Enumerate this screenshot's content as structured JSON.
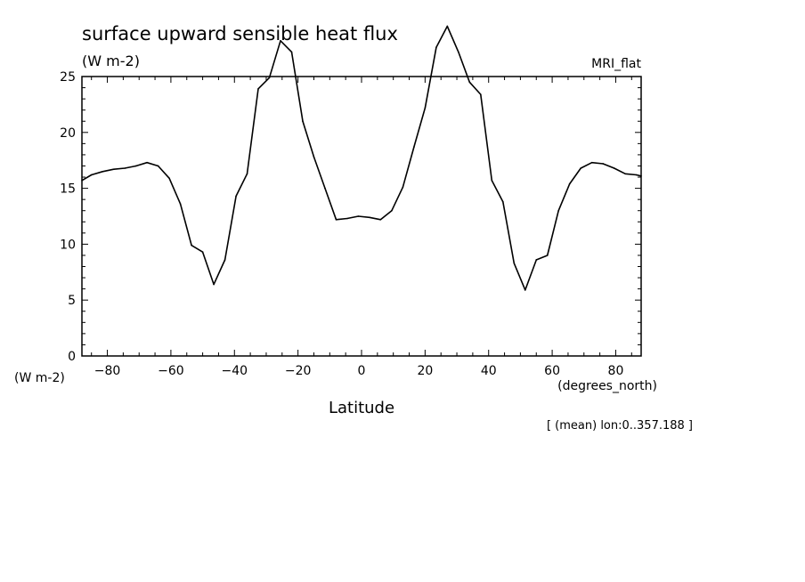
{
  "chart_data": {
    "type": "line",
    "title": "surface upward sensible heat flux",
    "units_label": "(W m-2)",
    "dataset_label": "MRI_flat",
    "xlabel": "Latitude",
    "x_units_label": "(degrees_north)",
    "y_units_label": "(W m-2)",
    "annotation": "[ (mean) lon:0..357.188 ]",
    "xlim": [
      -88,
      88
    ],
    "ylim": [
      0,
      25
    ],
    "x_ticks": [
      -80,
      -60,
      -40,
      -20,
      0,
      20,
      40,
      60,
      80
    ],
    "y_ticks": [
      0,
      5,
      10,
      15,
      20,
      25
    ],
    "grid": false,
    "series": [
      {
        "x": [
          -88,
          -85,
          -81.5,
          -78,
          -74.5,
          -71,
          -67.5,
          -64,
          -60.5,
          -57,
          -53.5,
          -50,
          -46.5,
          -43,
          -39.5,
          -36,
          -32.5,
          -29,
          -25.5,
          -22,
          -18.5,
          -15,
          -11.5,
          -8,
          -4.5,
          -1,
          2.5,
          6,
          9.5,
          13,
          16.5,
          20,
          23.5,
          27,
          30.5,
          34,
          37.5,
          41,
          44.5,
          48,
          51.5,
          55,
          58.5,
          62,
          65.5,
          69,
          72.5,
          76,
          79.5,
          83,
          86.5,
          88
        ],
        "values": [
          15.7,
          16.2,
          16.5,
          16.7,
          16.8,
          17.0,
          17.3,
          17.0,
          15.9,
          13.6,
          9.9,
          9.3,
          6.4,
          8.6,
          14.3,
          16.3,
          23.9,
          24.9,
          28.2,
          27.2,
          21.0,
          17.8,
          15.0,
          12.2,
          12.3,
          12.5,
          12.4,
          12.2,
          13.0,
          15.1,
          18.7,
          22.2,
          27.6,
          29.5,
          27.2,
          24.5,
          23.4,
          15.7,
          13.8,
          8.3,
          5.9,
          8.6,
          9.0,
          13.0,
          15.4,
          16.8,
          17.3,
          17.2,
          16.8,
          16.3,
          16.2,
          16.1
        ]
      }
    ]
  }
}
